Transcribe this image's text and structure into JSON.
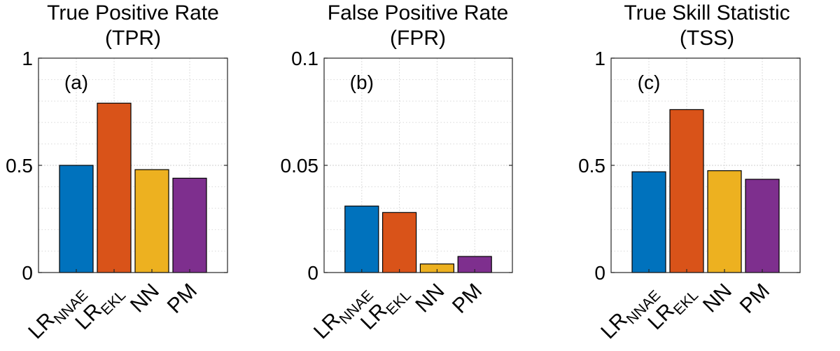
{
  "chart_data": [
    {
      "type": "bar",
      "title_line1": "True Positive Rate",
      "title_line2": "(TPR)",
      "panel_label": "(a)",
      "categories": [
        {
          "main": "LR",
          "sub": "NNAE"
        },
        {
          "main": "LR",
          "sub": "EKL"
        },
        {
          "main": "NN",
          "sub": ""
        },
        {
          "main": "PM",
          "sub": ""
        }
      ],
      "values": [
        0.5,
        0.79,
        0.48,
        0.44
      ],
      "colors": [
        "#0072BD",
        "#D95319",
        "#EDB120",
        "#7E2F8E"
      ],
      "ylim": [
        0,
        1
      ],
      "yticks": [
        0,
        0.5,
        1
      ],
      "ytick_labels": [
        "0",
        "0.5",
        "1"
      ],
      "grid": true
    },
    {
      "type": "bar",
      "title_line1": "False Positive Rate",
      "title_line2": "(FPR)",
      "panel_label": "(b)",
      "categories": [
        {
          "main": "LR",
          "sub": "NNAE"
        },
        {
          "main": "LR",
          "sub": "EKL"
        },
        {
          "main": "NN",
          "sub": ""
        },
        {
          "main": "PM",
          "sub": ""
        }
      ],
      "values": [
        0.031,
        0.028,
        0.004,
        0.0075
      ],
      "colors": [
        "#0072BD",
        "#D95319",
        "#EDB120",
        "#7E2F8E"
      ],
      "ylim": [
        0,
        0.1
      ],
      "yticks": [
        0,
        0.05,
        0.1
      ],
      "ytick_labels": [
        "0",
        "0.05",
        "0.1"
      ],
      "grid": true
    },
    {
      "type": "bar",
      "title_line1": "True Skill Statistic",
      "title_line2": "(TSS)",
      "panel_label": "(c)",
      "categories": [
        {
          "main": "LR",
          "sub": "NNAE"
        },
        {
          "main": "LR",
          "sub": "EKL"
        },
        {
          "main": "NN",
          "sub": ""
        },
        {
          "main": "PM",
          "sub": ""
        }
      ],
      "values": [
        0.47,
        0.76,
        0.475,
        0.435
      ],
      "colors": [
        "#0072BD",
        "#D95319",
        "#EDB120",
        "#7E2F8E"
      ],
      "ylim": [
        0,
        1
      ],
      "yticks": [
        0,
        0.5,
        1
      ],
      "ytick_labels": [
        "0",
        "0.5",
        "1"
      ],
      "grid": true
    }
  ]
}
